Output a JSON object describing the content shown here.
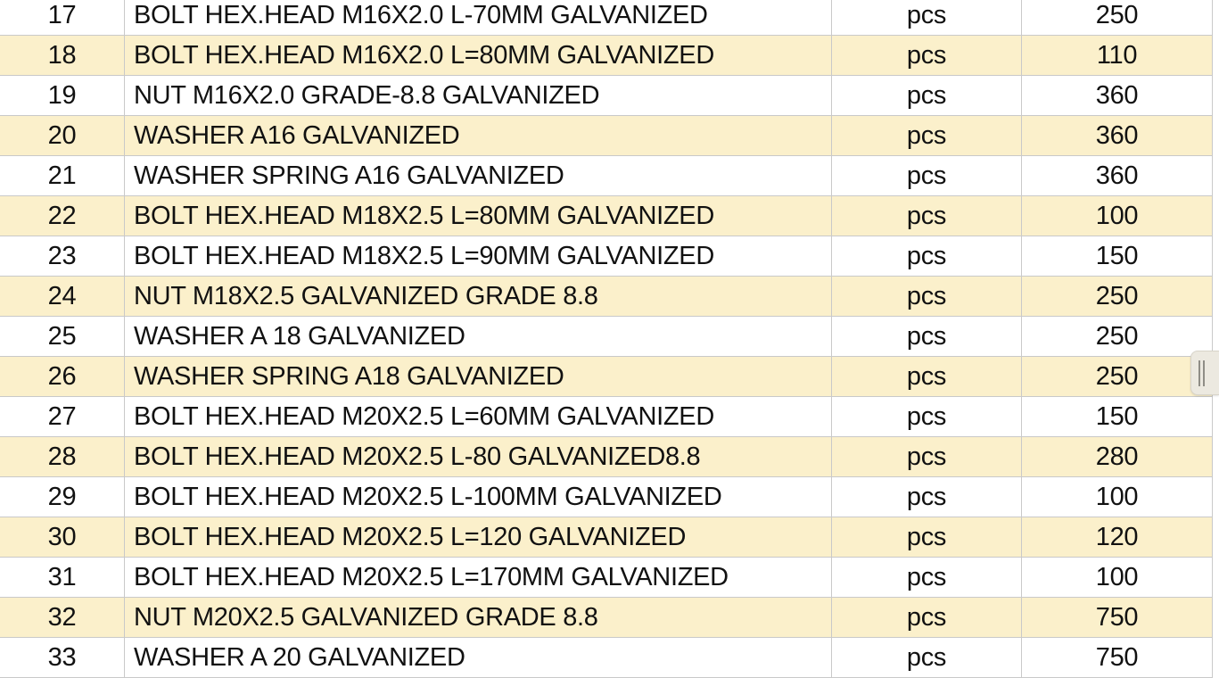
{
  "table": {
    "rows": [
      {
        "num": "17",
        "description": "BOLT HEX.HEAD M16X2.0 L-70MM GALVANIZED",
        "unit": "pcs",
        "qty": "250"
      },
      {
        "num": "18",
        "description": "BOLT HEX.HEAD M16X2.0 L=80MM GALVANIZED",
        "unit": "pcs",
        "qty": "110"
      },
      {
        "num": "19",
        "description": "NUT M16X2.0 GRADE-8.8 GALVANIZED",
        "unit": "pcs",
        "qty": "360"
      },
      {
        "num": "20",
        "description": "WASHER A16 GALVANIZED",
        "unit": "pcs",
        "qty": "360"
      },
      {
        "num": "21",
        "description": "WASHER SPRING A16 GALVANIZED",
        "unit": "pcs",
        "qty": "360"
      },
      {
        "num": "22",
        "description": "BOLT HEX.HEAD M18X2.5 L=80MM GALVANIZED",
        "unit": "pcs",
        "qty": "100"
      },
      {
        "num": "23",
        "description": "BOLT HEX.HEAD M18X2.5 L=90MM GALVANIZED",
        "unit": "pcs",
        "qty": "150"
      },
      {
        "num": "24",
        "description": "NUT M18X2.5 GALVANIZED GRADE 8.8",
        "unit": "pcs",
        "qty": "250"
      },
      {
        "num": "25",
        "description": "WASHER A 18 GALVANIZED",
        "unit": "pcs",
        "qty": "250"
      },
      {
        "num": "26",
        "description": "WASHER SPRING A18 GALVANIZED",
        "unit": "pcs",
        "qty": "250"
      },
      {
        "num": "27",
        "description": "BOLT HEX.HEAD M20X2.5 L=60MM GALVANIZED",
        "unit": "pcs",
        "qty": "150"
      },
      {
        "num": "28",
        "description": "BOLT HEX.HEAD M20X2.5 L-80 GALVANIZED8.8",
        "unit": "pcs",
        "qty": "280"
      },
      {
        "num": "29",
        "description": "BOLT HEX.HEAD M20X2.5 L-100MM GALVANIZED",
        "unit": "pcs",
        "qty": "100"
      },
      {
        "num": "30",
        "description": "BOLT HEX.HEAD M20X2.5 L=120 GALVANIZED",
        "unit": "pcs",
        "qty": "120"
      },
      {
        "num": "31",
        "description": "BOLT HEX.HEAD M20X2.5 L=170MM GALVANIZED",
        "unit": "pcs",
        "qty": "100"
      },
      {
        "num": "32",
        "description": "NUT M20X2.5 GALVANIZED GRADE 8.8",
        "unit": "pcs",
        "qty": "750"
      },
      {
        "num": "33",
        "description": "WASHER A 20 GALVANIZED",
        "unit": "pcs",
        "qty": "750"
      }
    ]
  },
  "scrollbar": {
    "grip_icon": "||"
  },
  "colors": {
    "row_shaded": "#fbf0cb",
    "row_plain": "#ffffff",
    "grid_line": "#c9c9c9",
    "text": "#111111",
    "scroll_handle": "#ece9e0",
    "scroll_grip_bar": "#8f8d86"
  }
}
